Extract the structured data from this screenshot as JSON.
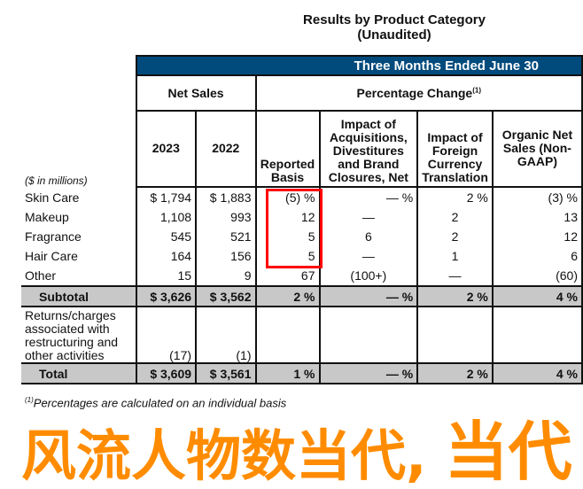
{
  "title": "Results by Product Category",
  "subtitle": "(Unaudited)",
  "period": "Three Months Ended June 30",
  "groups": {
    "net_sales": "Net Sales",
    "pct_change": "Percentage Change",
    "pct_sup": "(1)"
  },
  "units": "($ in millions)",
  "columns": [
    "2023",
    "2022",
    "Reported Basis",
    "Impact of Acquisitions, Divestitures and Brand Closures, Net",
    "Impact of Foreign Currency Translation",
    "Organic Net Sales (Non-GAAP)"
  ],
  "rows": [
    {
      "label": "Skin Care",
      "c": [
        "$ 1,794",
        "$ 1,883",
        "(5) %",
        "— %",
        "2 %",
        "(3) %"
      ]
    },
    {
      "label": "Makeup",
      "c": [
        "1,108",
        "993",
        "12",
        "—",
        "2",
        "13"
      ]
    },
    {
      "label": "Fragrance",
      "c": [
        "545",
        "521",
        "5",
        "6",
        "2",
        "12"
      ]
    },
    {
      "label": "Hair Care",
      "c": [
        "164",
        "156",
        "5",
        "—",
        "1",
        "6"
      ]
    },
    {
      "label": "Other",
      "c": [
        "15",
        "9",
        "67",
        "(100+)",
        "—",
        "(60)"
      ]
    }
  ],
  "subtotal": {
    "label": "Subtotal",
    "c": [
      "$ 3,626",
      "$ 3,562",
      "2 %",
      "— %",
      "2 %",
      "4 %"
    ]
  },
  "returns": {
    "label": "Returns/charges associated with restructuring and other activities",
    "c": [
      "(17)",
      "(1)",
      "",
      "",
      "",
      ""
    ]
  },
  "total": {
    "label": "Total",
    "c": [
      "$ 3,609",
      "$ 3,561",
      "1 %",
      "— %",
      "2 %",
      "4 %"
    ]
  },
  "footnote_sup": "(1)",
  "footnote": "Percentages are calculated on an individual basis",
  "overlay": {
    "line1": "风流人物数当代,",
    "line2": "当代",
    "color": "#ff8c00"
  },
  "colors": {
    "band": "#004a7c",
    "subtotal_bg": "#c8c8c8"
  }
}
